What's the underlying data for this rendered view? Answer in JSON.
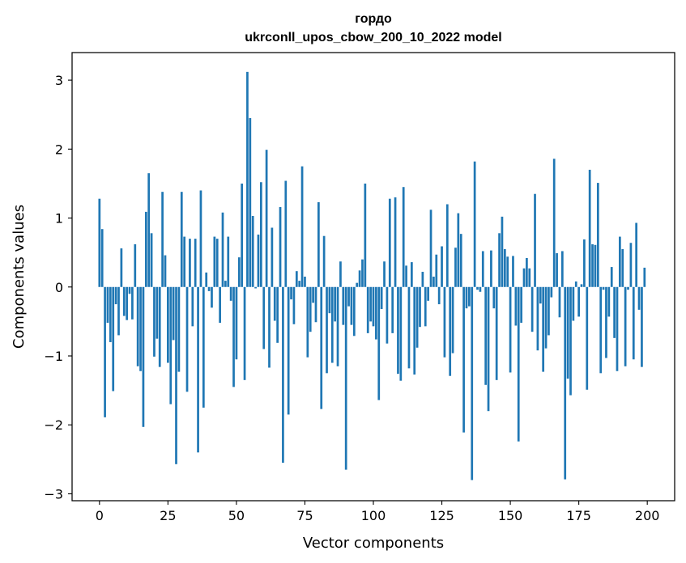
{
  "chart_data": {
    "type": "bar",
    "title_line1": "гордо",
    "title_line2": "ukrconll_upos_cbow_200_10_2022 model",
    "xlabel": "Vector components",
    "ylabel": "Components values",
    "xlim": [
      -10,
      210
    ],
    "ylim": [
      -3.1,
      3.4
    ],
    "xticks": [
      0,
      25,
      50,
      75,
      100,
      125,
      150,
      175,
      200
    ],
    "xtick_labels": [
      "0",
      "25",
      "50",
      "75",
      "100",
      "125",
      "150",
      "175",
      "200"
    ],
    "yticks": [
      3,
      2,
      1,
      0,
      -1,
      -2,
      -3
    ],
    "ytick_labels": [
      "3",
      "2",
      "1",
      "0",
      "−1",
      "−2",
      "−3"
    ],
    "grid": false,
    "color": "#1f77b4",
    "values": [
      1.28,
      0.84,
      -1.89,
      -0.52,
      -0.8,
      -1.51,
      -0.25,
      -0.7,
      0.56,
      -0.42,
      -0.48,
      -0.1,
      -0.47,
      0.62,
      -1.15,
      -1.22,
      -2.03,
      1.09,
      1.65,
      0.78,
      -1.01,
      -0.75,
      -1.16,
      1.38,
      0.46,
      -1.1,
      -1.7,
      -0.77,
      -2.57,
      -1.23,
      1.38,
      0.73,
      -1.52,
      0.7,
      -0.57,
      0.7,
      -2.4,
      1.4,
      -1.75,
      0.21,
      -0.06,
      -0.3,
      0.73,
      0.7,
      -0.52,
      1.08,
      0.09,
      0.73,
      -0.2,
      -1.45,
      -1.05,
      0.43,
      1.5,
      -1.35,
      3.12,
      2.45,
      1.03,
      -0.02,
      0.76,
      1.52,
      -0.9,
      1.99,
      -1.17,
      0.86,
      -0.49,
      -0.81,
      1.16,
      -2.55,
      1.54,
      -1.85,
      -0.18,
      -0.54,
      0.23,
      0.09,
      1.75,
      0.15,
      -1.02,
      -0.65,
      -0.23,
      -0.51,
      1.23,
      -1.77,
      0.74,
      -1.25,
      -0.38,
      -1.1,
      -0.5,
      -1.15,
      0.37,
      -0.55,
      -2.65,
      -0.28,
      -0.55,
      -0.71,
      0.06,
      0.24,
      0.4,
      1.5,
      -0.67,
      -0.5,
      -0.57,
      -0.76,
      -1.64,
      -0.32,
      0.37,
      -0.82,
      1.28,
      -0.67,
      1.3,
      -1.26,
      -1.36,
      1.45,
      0.31,
      -1.18,
      0.36,
      -1.27,
      -0.88,
      -0.58,
      0.22,
      -0.57,
      -0.2,
      1.12,
      0.15,
      0.47,
      -0.25,
      0.59,
      -1.02,
      1.2,
      -1.29,
      -0.96,
      0.57,
      1.07,
      0.77,
      -2.11,
      -0.31,
      -0.28,
      -2.8,
      1.82,
      -0.04,
      -0.07,
      0.52,
      -1.42,
      -1.8,
      0.53,
      -0.31,
      -1.35,
      0.78,
      1.02,
      0.55,
      0.44,
      -1.24,
      0.45,
      -0.56,
      -2.24,
      -0.52,
      0.27,
      0.42,
      0.27,
      -0.65,
      1.35,
      -0.92,
      -0.24,
      -1.23,
      -0.89,
      -0.7,
      -0.15,
      1.86,
      0.49,
      -0.44,
      0.52,
      -2.79,
      -1.33,
      -1.57,
      -0.49,
      0.08,
      -0.43,
      0.04,
      0.69,
      -1.49,
      1.7,
      0.62,
      0.61,
      1.51,
      -1.25,
      -0.04,
      -1.03,
      -0.43,
      0.29,
      -0.74,
      -1.22,
      0.73,
      0.55,
      -1.15,
      -0.04,
      0.64,
      -1.05,
      0.93,
      -0.33,
      -1.16,
      0.28
    ]
  }
}
